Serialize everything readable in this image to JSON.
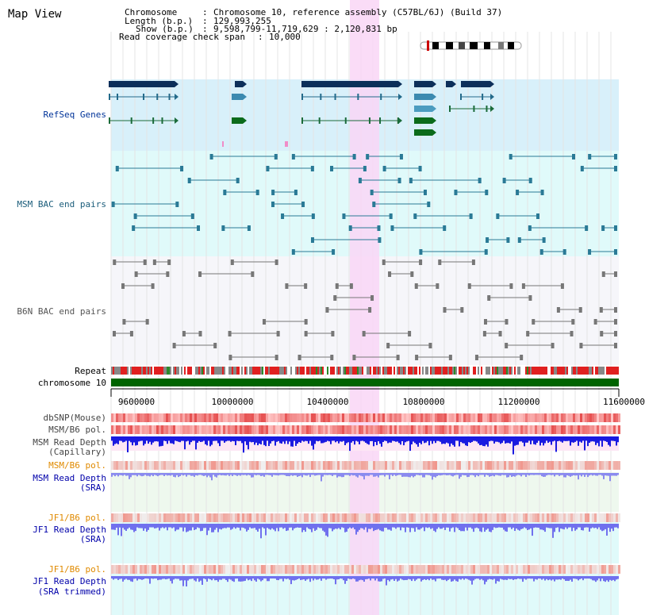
{
  "header": {
    "title": "Map View",
    "chromosome_key": "Chromosome",
    "chromosome_value": "Chromosome 10, reference assembly (C57BL/6J) (Build 37)",
    "length_key": "Length (b.p.)",
    "length_value": "129,993,255",
    "show_key": "Show (b.p.)",
    "show_value": "9,598,799-11,719,629 : 2,120,831 bp",
    "coverage_key": "Read coverage check span",
    "coverage_value": "10,000"
  },
  "tracks": {
    "refseq": "RefSeq Genes",
    "msm_bac": "MSM BAC end pairs",
    "b6n_bac": "B6N BAC end pairs",
    "repeat": "Repeat",
    "chromosome": "chromosome 10",
    "dbsnp": "dbSNP(Mouse)",
    "msm_b6_pol_1": "MSM/B6 pol.",
    "msm_read_depth_cap_1": "MSM Read Depth",
    "msm_read_depth_cap_2": "(Capillary)",
    "msm_b6_pol_2": "MSM/B6 pol.",
    "msm_read_depth_sra_1": "MSM Read Depth",
    "msm_read_depth_sra_2": "(SRA)",
    "jf1_b6_pol_1": "JF1/B6 pol.",
    "jf1_read_depth_sra_1": "JF1 Read Depth",
    "jf1_read_depth_sra_2": "(SRA)",
    "jf1_b6_pol_2": "JF1/B6 pol.",
    "jf1_read_depth_trim_1": "JF1 Read Depth",
    "jf1_read_depth_trim_2": "(SRA trimmed)"
  },
  "axis": {
    "ticks": [
      "9600000",
      "10000000",
      "10400000",
      "10800000",
      "11200000",
      "11600000"
    ]
  },
  "colors": {
    "refseq_bg": "#d8f0fa",
    "msm_bg": "#e0fafa",
    "b6n_bg": "#f6f6fa",
    "highlight": "#f9d6f6",
    "chromosome_bar": "#006400",
    "label_blue": "#003399",
    "label_orange": "#e08a00",
    "label_dark": "#444444"
  }
}
